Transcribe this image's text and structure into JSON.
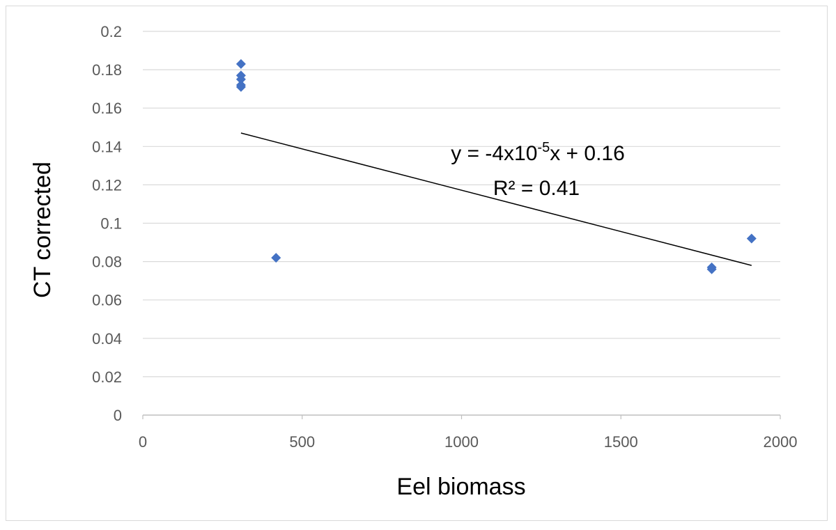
{
  "chart_data": {
    "type": "scatter",
    "title": "",
    "xlabel": "Eel biomass",
    "ylabel": "CT corrected",
    "xlim": [
      0,
      2000
    ],
    "ylim": [
      0,
      0.2
    ],
    "x_ticks": [
      "0",
      "500",
      "1000",
      "1500",
      "2000"
    ],
    "y_ticks": [
      "0",
      "0.02",
      "0.04",
      "0.06",
      "0.08",
      "0.1",
      "0.12",
      "0.14",
      "0.16",
      "0.18",
      "0.2"
    ],
    "grid": "horizontal",
    "series": [
      {
        "color": "#4472c4",
        "marker": "diamond",
        "points": [
          {
            "x": 308,
            "y": 0.183
          },
          {
            "x": 308,
            "y": 0.177
          },
          {
            "x": 308,
            "y": 0.175
          },
          {
            "x": 308,
            "y": 0.172
          },
          {
            "x": 308,
            "y": 0.171
          },
          {
            "x": 418,
            "y": 0.082
          },
          {
            "x": 1785,
            "y": 0.077
          },
          {
            "x": 1785,
            "y": 0.076
          },
          {
            "x": 1910,
            "y": 0.092
          }
        ]
      }
    ],
    "trendline": {
      "type": "linear",
      "x_range": [
        308,
        1910
      ],
      "y_range": [
        0.147,
        0.078
      ],
      "color": "#000000",
      "equation_text": {
        "prefix": "y = -4x10",
        "superscript": "-5",
        "suffix": "x + 0.16"
      },
      "r2_text": "R² = 0.41"
    }
  }
}
